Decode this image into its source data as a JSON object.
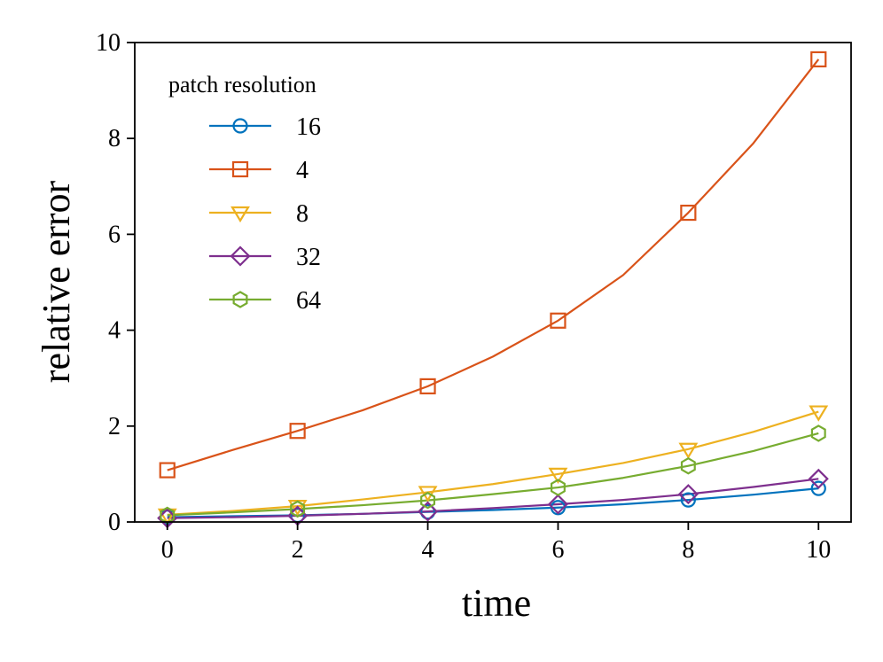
{
  "chart_data": {
    "type": "line",
    "title": "",
    "xlabel": "time",
    "ylabel": "relative error",
    "xlim": [
      -0.5,
      10.5
    ],
    "ylim": [
      0,
      10
    ],
    "xticks": [
      0,
      2,
      4,
      6,
      8,
      10
    ],
    "yticks": [
      0,
      2,
      4,
      6,
      8,
      10
    ],
    "grid": false,
    "legend": {
      "title": "patch resolution",
      "placement": "upper-left"
    },
    "x": [
      0,
      1,
      2,
      3,
      4,
      5,
      6,
      7,
      8,
      9,
      10
    ],
    "marker_every": 2,
    "series": [
      {
        "name": "16",
        "color": "#0072BD",
        "marker": "circle",
        "values": [
          0.1,
          0.12,
          0.14,
          0.17,
          0.21,
          0.25,
          0.3,
          0.37,
          0.46,
          0.57,
          0.7
        ]
      },
      {
        "name": "4",
        "color": "#D95319",
        "marker": "square",
        "values": [
          1.08,
          1.5,
          1.9,
          2.33,
          2.83,
          3.45,
          4.2,
          5.15,
          6.45,
          7.9,
          9.65
        ]
      },
      {
        "name": "8",
        "color": "#EDB120",
        "marker": "triangle-down",
        "values": [
          0.15,
          0.23,
          0.33,
          0.47,
          0.62,
          0.79,
          1.0,
          1.23,
          1.52,
          1.88,
          2.3
        ]
      },
      {
        "name": "32",
        "color": "#7E2F8E",
        "marker": "diamond",
        "values": [
          0.08,
          0.1,
          0.13,
          0.17,
          0.22,
          0.29,
          0.37,
          0.46,
          0.58,
          0.73,
          0.9
        ]
      },
      {
        "name": "64",
        "color": "#77AC30",
        "marker": "hexagon",
        "values": [
          0.14,
          0.2,
          0.27,
          0.35,
          0.45,
          0.58,
          0.72,
          0.92,
          1.17,
          1.48,
          1.85
        ]
      }
    ]
  }
}
